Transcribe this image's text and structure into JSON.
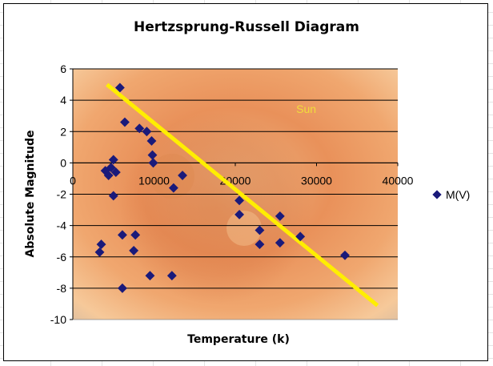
{
  "chart_data": {
    "type": "scatter",
    "title": "Hertzsprung-Russell Diagram",
    "xlabel": "Temperature (k)",
    "ylabel": "Absolute Magnitude",
    "xlim": [
      0,
      40000
    ],
    "ylim": [
      -10,
      6
    ],
    "x_ticks": [
      "0",
      "10000",
      "20000",
      "30000",
      "40000"
    ],
    "y_ticks": [
      "6",
      "4",
      "2",
      "0",
      "-2",
      "-4",
      "-6",
      "-8",
      "-10"
    ],
    "grid": "horizontal",
    "legend_position": "right",
    "annotation": "Sun",
    "background": "solar disc image (orange/red sun)",
    "colors": {
      "marker": "#1a1a7a",
      "trendline": "#ffee00",
      "plot_fill": "#b9b9b9",
      "annotation": "#f0dd3a"
    },
    "series": [
      {
        "name": "M(V)",
        "marker": "diamond",
        "points": [
          [
            5800,
            4.8
          ],
          [
            6400,
            2.6
          ],
          [
            8200,
            2.2
          ],
          [
            9100,
            2.0
          ],
          [
            9700,
            1.4
          ],
          [
            9800,
            0.5
          ],
          [
            9900,
            0.0
          ],
          [
            5000,
            0.2
          ],
          [
            4000,
            -0.5
          ],
          [
            4400,
            -0.8
          ],
          [
            4700,
            -0.3
          ],
          [
            5300,
            -0.6
          ],
          [
            5000,
            -2.1
          ],
          [
            13500,
            -0.8
          ],
          [
            12400,
            -1.6
          ],
          [
            20500,
            -2.4
          ],
          [
            20500,
            -3.3
          ],
          [
            23000,
            -4.3
          ],
          [
            23000,
            -5.2
          ],
          [
            25500,
            -3.4
          ],
          [
            25500,
            -5.1
          ],
          [
            28000,
            -4.7
          ],
          [
            33500,
            -5.9
          ],
          [
            3500,
            -5.2
          ],
          [
            3300,
            -5.7
          ],
          [
            6100,
            -4.6
          ],
          [
            7700,
            -4.6
          ],
          [
            7500,
            -5.6
          ],
          [
            6100,
            -8.0
          ],
          [
            9500,
            -7.2
          ],
          [
            12200,
            -7.2
          ]
        ]
      }
    ],
    "trendline": {
      "x": [
        4200,
        37500
      ],
      "y": [
        5.0,
        -9.1
      ]
    }
  }
}
